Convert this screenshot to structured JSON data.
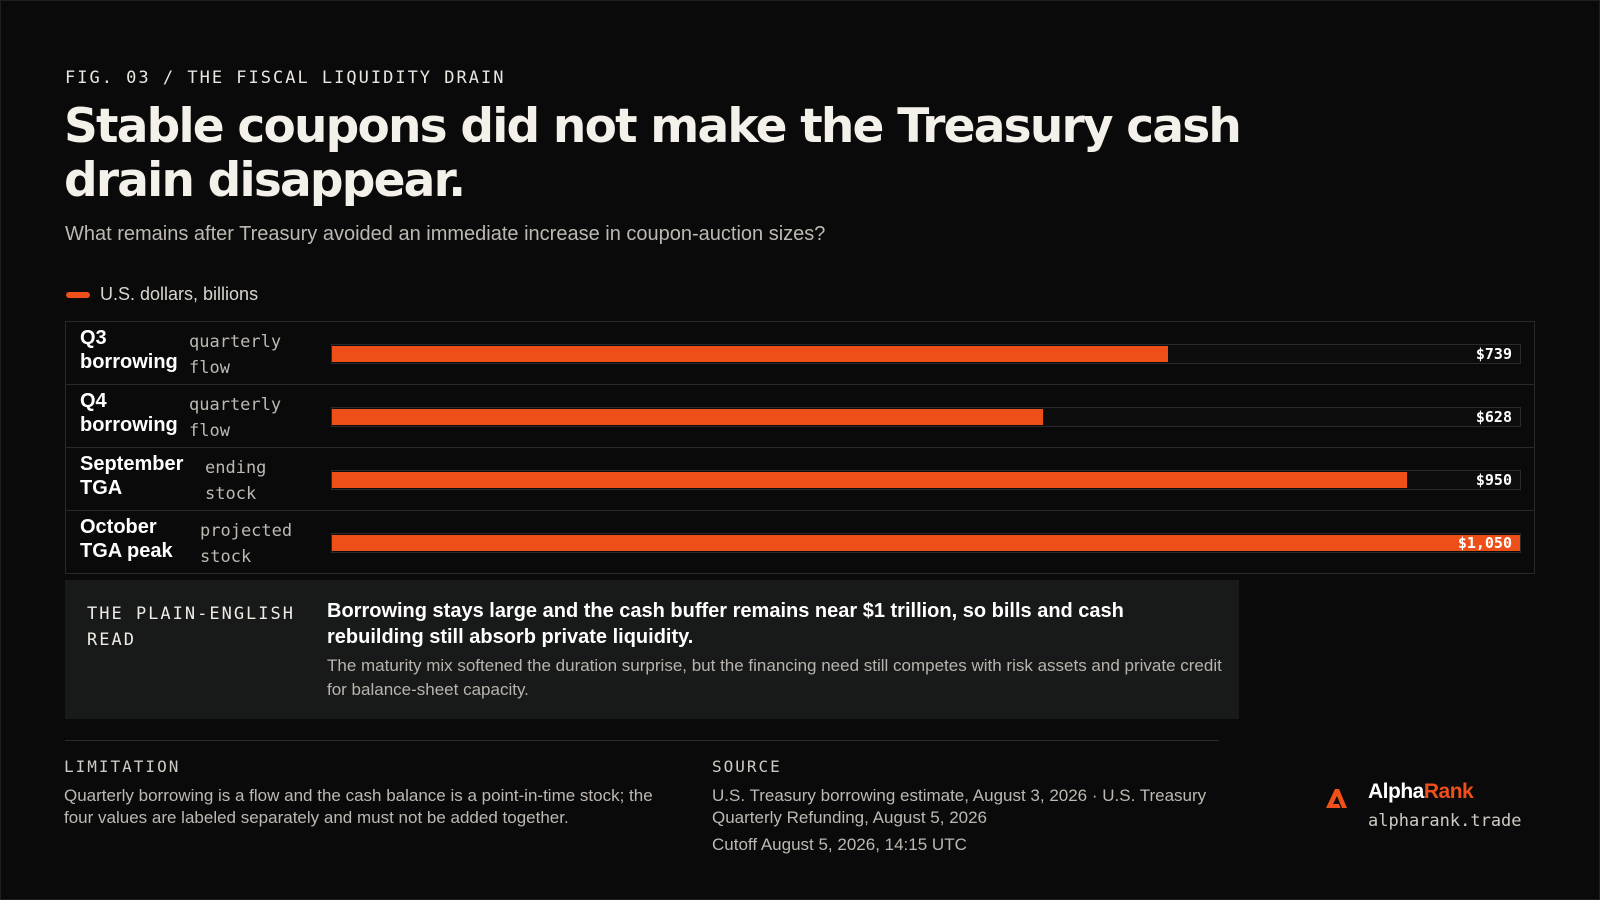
{
  "header": {
    "eyebrow": "FIG. 03 / THE FISCAL LIQUIDITY DRAIN",
    "title": "Stable coupons did not make the Treasury cash drain disappear.",
    "subtitle": "What remains after Treasury avoided an immediate increase in coupon-auction sizes?"
  },
  "legend": {
    "label": "U.S. dollars, billions"
  },
  "chart_data": {
    "type": "bar",
    "orientation": "horizontal",
    "categories": [
      "Q3 borrowing",
      "Q4 borrowing",
      "September TGA",
      "October TGA peak"
    ],
    "kinds": [
      "quarterly flow",
      "quarterly flow",
      "ending stock",
      "projected stock"
    ],
    "values": [
      739,
      628,
      950,
      1050
    ],
    "value_labels": [
      "$739",
      "$628",
      "$950",
      "$1,050"
    ],
    "unit": "U.S. dollars, billions",
    "xlim": [
      0,
      1050
    ],
    "grid": false,
    "bar_color": "#ee4f18"
  },
  "read": {
    "kicker": "THE PLAIN-ENGLISH READ",
    "headline": "Borrowing stays large and the cash buffer remains near $1 trillion, so bills and cash rebuilding still absorb private liquidity.",
    "body": "The maturity mix softened the duration surprise, but the financing need still competes with risk assets and private credit for balance-sheet capacity."
  },
  "footer": {
    "limitation_label": "LIMITATION",
    "limitation_text": "Quarterly borrowing is a flow and the cash balance is a point-in-time stock; the four values are labeled separately and must not be added together.",
    "source_label": "SOURCE",
    "source_text": "U.S. Treasury borrowing estimate, August 3, 2026 · U.S. Treasury Quarterly Refunding, August 5, 2026",
    "cutoff_text": "Cutoff August 5, 2026, 14:15 UTC"
  },
  "brand": {
    "name_part1": "Alpha",
    "name_part2": "Rank",
    "url": "alpharank.trade",
    "logo_icon": "alpharank-logo-icon",
    "accent_color": "#ef4f1a"
  }
}
